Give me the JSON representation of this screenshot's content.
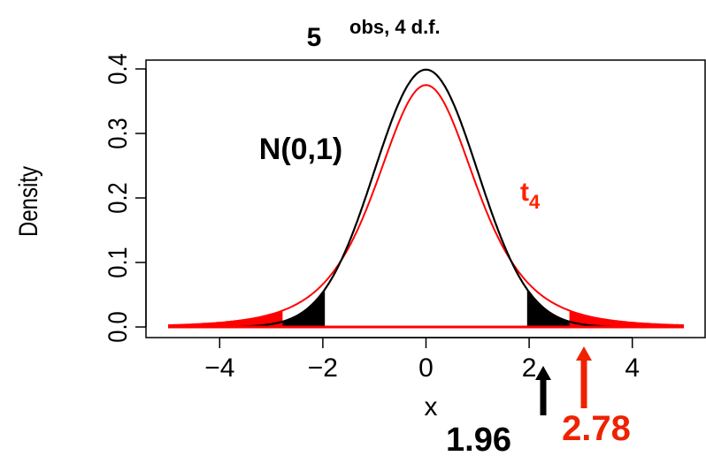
{
  "chart_data": {
    "type": "line",
    "title_number": "5",
    "title_rest": "obs, 4 d.f.",
    "xlabel": "x",
    "ylabel": "Density",
    "xlim": [
      -5,
      5
    ],
    "ylim": [
      0.0,
      0.4
    ],
    "x_ticks": [
      -4,
      -2,
      0,
      2,
      4
    ],
    "x_tick_labels": [
      "−4",
      "−2",
      "0",
      "2",
      "4"
    ],
    "y_ticks": [
      0.0,
      0.1,
      0.2,
      0.3,
      0.4
    ],
    "y_tick_labels": [
      "0.0",
      "0.1",
      "0.2",
      "0.3",
      "0.4"
    ],
    "series": [
      {
        "name": "N(0,1)",
        "dist": "normal",
        "color": "#000000",
        "shade_beyond": 1.96
      },
      {
        "name": "t",
        "name_subscript": "4",
        "dist": "t",
        "df": 4,
        "color": "#ff0000",
        "shade_beyond": 2.78
      }
    ],
    "annotations": [
      {
        "text": "1.96",
        "x": 1.96,
        "color": "#000000"
      },
      {
        "text": "2.78",
        "x": 2.78,
        "color": "#ee2200"
      }
    ]
  }
}
